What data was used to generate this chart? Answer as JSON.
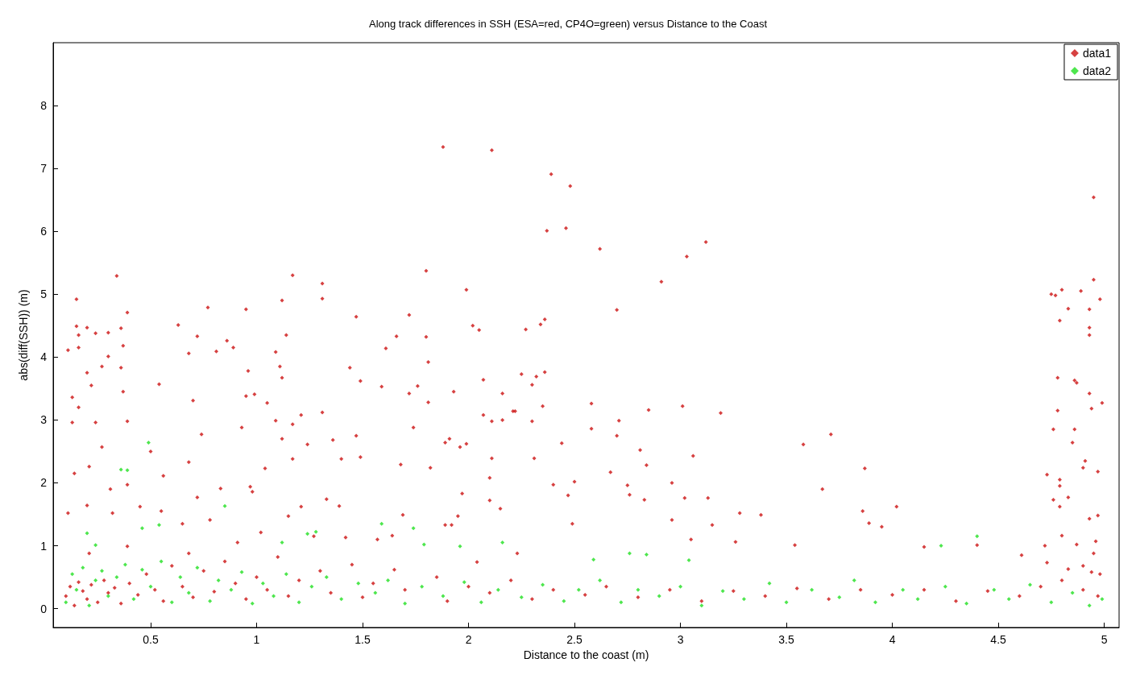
{
  "chart_data": {
    "type": "scatter",
    "title": "Along track differences in SSH (ESA=red, CP4O=green) versus Distance to the Coast",
    "xlabel": "Distance to the coast (m)",
    "ylabel": "abs(diff(SSH)) (m)",
    "xlim": [
      0.04,
      5.07
    ],
    "ylim": [
      -0.3,
      9
    ],
    "xticks": [
      0.5,
      1,
      1.5,
      2,
      2.5,
      3,
      3.5,
      4,
      4.5,
      5
    ],
    "yticks": [
      0,
      1,
      2,
      3,
      4,
      5,
      6,
      7,
      8
    ],
    "grid": false,
    "legend": "top right",
    "marker": "diamond",
    "series": [
      {
        "name": "data1",
        "color": "#cc1111",
        "x": [
          0.11,
          0.15,
          0.15,
          0.16,
          0.16,
          0.13,
          0.16,
          0.13,
          0.14,
          0.11,
          0.2,
          0.2,
          0.22,
          0.24,
          0.24,
          0.27,
          0.21,
          0.2,
          0.3,
          0.27,
          0.3,
          0.31,
          0.34,
          0.36,
          0.37,
          0.36,
          0.37,
          0.39,
          0.39,
          0.39,
          0.32,
          0.5,
          0.54,
          0.56,
          0.63,
          0.68,
          0.72,
          0.77,
          0.7,
          0.74,
          0.68,
          0.72,
          0.81,
          0.86,
          0.89,
          0.95,
          0.96,
          0.99,
          0.93,
          0.95,
          0.98,
          1.04,
          1.09,
          1.12,
          1.14,
          1.11,
          1.12,
          1.05,
          1.09,
          1.17,
          1.21,
          1.17,
          1.17,
          1.12,
          1.24,
          1.31,
          1.31,
          1.31,
          1.33,
          1.36,
          1.4,
          1.44,
          1.47,
          1.49,
          1.47,
          1.49,
          1.59,
          1.61,
          1.66,
          1.72,
          1.76,
          1.72,
          1.8,
          1.8,
          1.81,
          1.81,
          1.74,
          1.68,
          1.82,
          1.99,
          2.02,
          2.05,
          1.93,
          2.07,
          2.07,
          2.11,
          2.16,
          2.16,
          2.21,
          2.22,
          2.25,
          2.27,
          2.34,
          2.36,
          2.32,
          2.3,
          2.36,
          2.35,
          2.3,
          2.31,
          2.44,
          2.4,
          2.5,
          2.58,
          2.58,
          1.89,
          1.91,
          1.96,
          1.99,
          1.89,
          1.95,
          1.97,
          2.11,
          2.1,
          2.1,
          2.15,
          1.88,
          2.11,
          2.39,
          2.48,
          2.37,
          2.46,
          2.62,
          3.12,
          4.95,
          3.03,
          2.91,
          2.7,
          2.85,
          3.01,
          3.19,
          2.71,
          2.7,
          2.81,
          2.84,
          2.67,
          3.06,
          3.58,
          3.71,
          3.87,
          3.67,
          4.02,
          3.86,
          3.89,
          3.95,
          2.47,
          2.49,
          2.96,
          3.02,
          3.13,
          2.96,
          3.15,
          2.75,
          2.76,
          2.83,
          3.28,
          3.38,
          3.05,
          3.26,
          3.54,
          4.15,
          4.4,
          4.61,
          4.75,
          4.77,
          4.8,
          4.89,
          4.95,
          4.98,
          4.83,
          4.79,
          4.93,
          4.93,
          4.93,
          4.78,
          4.86,
          4.87,
          4.93,
          4.99,
          4.94,
          4.78,
          4.76,
          4.86,
          4.85,
          4.91,
          4.9,
          4.97,
          4.73,
          4.79,
          4.79,
          4.76,
          4.83,
          4.79,
          4.93,
          4.97,
          4.8,
          4.96,
          4.72,
          4.87,
          4.95,
          4.9,
          4.83,
          4.94,
          4.98,
          4.73,
          0.45,
          0.55,
          0.65,
          0.78,
          0.83,
          0.91,
          0.97,
          1.02,
          1.15,
          1.21,
          1.27,
          1.39,
          1.42,
          1.57,
          1.64,
          1.69,
          1.92,
          2.23,
          0.68,
          0.39,
          0.21,
          2.04,
          0.1,
          0.12,
          0.14,
          0.16,
          0.18,
          0.2,
          0.22,
          0.25,
          0.28,
          0.3,
          0.33,
          0.36,
          0.4,
          0.44,
          0.48,
          0.52,
          0.56,
          0.6,
          0.65,
          0.7,
          0.75,
          0.8,
          0.85,
          0.9,
          0.95,
          1.0,
          1.05,
          1.1,
          1.15,
          1.2,
          1.3,
          1.35,
          1.45,
          1.5,
          1.55,
          1.65,
          1.7,
          1.85,
          1.9,
          2.0,
          2.1,
          2.2,
          2.3,
          2.4,
          2.55,
          2.65,
          2.8,
          2.95,
          3.1,
          3.25,
          3.4,
          3.55,
          3.7,
          3.85,
          4.0,
          4.15,
          4.3,
          4.45,
          4.6,
          4.7,
          4.8,
          4.9,
          4.97
        ],
        "values": [
          4.11,
          4.92,
          4.49,
          4.35,
          4.15,
          3.36,
          3.2,
          2.96,
          2.15,
          1.52,
          4.47,
          3.75,
          3.55,
          2.96,
          4.38,
          2.57,
          2.26,
          1.64,
          4.39,
          3.85,
          4.01,
          1.9,
          5.29,
          4.46,
          4.18,
          3.83,
          3.45,
          2.98,
          4.71,
          1.97,
          1.52,
          2.5,
          3.57,
          2.11,
          4.51,
          4.06,
          4.33,
          4.79,
          3.31,
          2.77,
          2.33,
          1.77,
          4.09,
          4.26,
          4.15,
          4.76,
          3.78,
          3.41,
          2.88,
          3.38,
          1.86,
          2.23,
          4.08,
          4.9,
          4.35,
          3.85,
          3.67,
          3.27,
          2.99,
          5.3,
          3.08,
          2.93,
          2.38,
          2.7,
          2.61,
          5.17,
          4.93,
          3.12,
          1.74,
          2.68,
          2.38,
          3.83,
          4.64,
          3.62,
          2.75,
          2.41,
          3.53,
          4.14,
          4.33,
          4.67,
          3.54,
          3.42,
          5.37,
          4.32,
          3.92,
          3.28,
          2.88,
          2.29,
          2.24,
          5.07,
          4.5,
          4.43,
          3.45,
          3.64,
          3.08,
          2.98,
          3.42,
          3.0,
          3.14,
          3.14,
          3.73,
          4.44,
          4.52,
          4.6,
          3.69,
          3.56,
          3.76,
          3.22,
          2.98,
          2.39,
          2.63,
          1.97,
          2.02,
          3.26,
          2.86,
          2.64,
          2.7,
          2.57,
          2.62,
          1.33,
          1.47,
          1.83,
          2.39,
          2.08,
          1.72,
          1.59,
          7.34,
          7.29,
          6.91,
          6.72,
          6.01,
          6.05,
          5.72,
          5.83,
          6.54,
          5.6,
          5.2,
          4.75,
          3.16,
          3.22,
          3.11,
          2.99,
          2.75,
          2.52,
          2.28,
          2.17,
          2.43,
          2.61,
          2.77,
          2.23,
          1.9,
          1.62,
          1.55,
          1.36,
          1.3,
          1.8,
          1.35,
          2.0,
          1.76,
          1.76,
          1.41,
          1.33,
          1.96,
          1.81,
          1.73,
          1.52,
          1.49,
          1.1,
          1.06,
          1.01,
          0.98,
          1.01,
          0.85,
          5.0,
          4.98,
          5.07,
          5.05,
          5.23,
          4.92,
          4.77,
          4.58,
          4.76,
          4.47,
          4.35,
          3.67,
          3.63,
          3.59,
          3.42,
          3.27,
          3.18,
          3.15,
          2.85,
          2.85,
          2.64,
          2.35,
          2.24,
          2.18,
          2.13,
          2.05,
          1.95,
          1.73,
          1.77,
          1.62,
          1.43,
          1.48,
          1.16,
          1.07,
          1.0,
          1.02,
          0.88,
          0.68,
          0.63,
          0.58,
          0.55,
          0.73,
          1.62,
          1.55,
          1.35,
          1.41,
          1.91,
          1.05,
          1.94,
          1.21,
          1.47,
          1.62,
          1.15,
          1.63,
          1.13,
          1.1,
          1.16,
          1.49,
          1.33,
          0.88,
          0.88,
          0.99,
          0.88,
          0.74,
          0.2,
          0.35,
          0.05,
          0.42,
          0.28,
          0.15,
          0.38,
          0.1,
          0.45,
          0.25,
          0.33,
          0.08,
          0.4,
          0.22,
          0.55,
          0.3,
          0.12,
          0.68,
          0.35,
          0.18,
          0.6,
          0.27,
          0.75,
          0.4,
          0.15,
          0.5,
          0.3,
          0.82,
          0.2,
          0.45,
          0.6,
          0.25,
          0.7,
          0.18,
          0.4,
          0.62,
          0.3,
          0.5,
          0.12,
          0.35,
          0.25,
          0.45,
          0.15,
          0.3,
          0.22,
          0.35,
          0.18,
          0.3,
          0.12,
          0.28,
          0.2,
          0.32,
          0.15,
          0.3,
          0.22,
          0.3,
          0.12,
          0.28,
          0.2,
          0.35,
          0.45,
          0.3,
          0.2
        ]
      },
      {
        "name": "data2",
        "color": "#22e022",
        "x": [
          0.36,
          0.39,
          0.49,
          0.2,
          0.24,
          0.85,
          1.12,
          1.24,
          1.28,
          1.59,
          1.74,
          2.16,
          1.96,
          1.79,
          0.46,
          0.54,
          2.59,
          4.4,
          4.23,
          2.76,
          3.04,
          2.84,
          0.1,
          0.13,
          0.15,
          0.18,
          0.21,
          0.24,
          0.27,
          0.3,
          0.34,
          0.38,
          0.42,
          0.46,
          0.5,
          0.55,
          0.6,
          0.64,
          0.68,
          0.72,
          0.78,
          0.82,
          0.88,
          0.93,
          0.98,
          1.03,
          1.08,
          1.14,
          1.2,
          1.26,
          1.33,
          1.4,
          1.48,
          1.56,
          1.62,
          1.7,
          1.78,
          1.88,
          1.98,
          2.06,
          2.14,
          2.25,
          2.35,
          2.45,
          2.52,
          2.62,
          2.72,
          2.8,
          2.9,
          3.0,
          3.1,
          3.2,
          3.3,
          3.42,
          3.5,
          3.62,
          3.75,
          3.82,
          3.92,
          4.05,
          4.12,
          4.25,
          4.35,
          4.48,
          4.55,
          4.65,
          4.75,
          4.85,
          4.93,
          4.99
        ],
        "values": [
          2.21,
          2.2,
          2.64,
          1.2,
          1.01,
          1.63,
          1.05,
          1.19,
          1.22,
          1.35,
          1.28,
          1.05,
          0.99,
          1.02,
          1.28,
          1.33,
          0.78,
          1.15,
          1.0,
          0.88,
          0.77,
          0.86,
          0.1,
          0.55,
          0.3,
          0.65,
          0.05,
          0.45,
          0.6,
          0.2,
          0.5,
          0.7,
          0.15,
          0.62,
          0.35,
          0.75,
          0.1,
          0.5,
          0.25,
          0.65,
          0.12,
          0.45,
          0.3,
          0.58,
          0.08,
          0.4,
          0.2,
          0.55,
          0.1,
          0.35,
          0.5,
          0.15,
          0.4,
          0.25,
          0.45,
          0.08,
          0.35,
          0.2,
          0.42,
          0.1,
          0.3,
          0.18,
          0.38,
          0.12,
          0.3,
          0.45,
          0.1,
          0.3,
          0.2,
          0.35,
          0.05,
          0.28,
          0.15,
          0.4,
          0.1,
          0.3,
          0.18,
          0.45,
          0.1,
          0.3,
          0.15,
          0.35,
          0.08,
          0.3,
          0.15,
          0.38,
          0.1,
          0.25,
          0.05,
          0.15
        ]
      }
    ]
  }
}
